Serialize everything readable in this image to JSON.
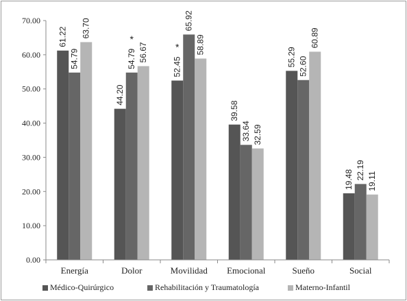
{
  "chart_data": {
    "type": "bar",
    "title": "",
    "xlabel": "",
    "ylabel": "",
    "ylim": [
      0,
      70
    ],
    "yticks": [
      "0.00",
      "10.00",
      "20.00",
      "30.00",
      "40.00",
      "50.00",
      "60.00",
      "70.00"
    ],
    "categories": [
      "Energía",
      "Dolor",
      "Movilidad",
      "Emocional",
      "Sueño",
      "Social"
    ],
    "series": [
      {
        "name": "Médico-Quirúrgico",
        "color": "#555555",
        "values": [
          61.22,
          44.2,
          52.45,
          39.58,
          55.29,
          19.48
        ],
        "labels": [
          "61.22",
          "44.20",
          "52.45",
          "39.58",
          "55.29",
          "19.48"
        ]
      },
      {
        "name": "Rehabilitación y Traumatología",
        "color": "#666666",
        "values": [
          54.79,
          54.79,
          65.92,
          33.64,
          52.6,
          22.19
        ],
        "labels": [
          "54.79",
          "54.79",
          "65.92",
          "33.64",
          "52.60",
          "22.19"
        ]
      },
      {
        "name": "Materno-Infantil",
        "color": "#b5b5b5",
        "values": [
          63.7,
          56.67,
          58.89,
          32.59,
          60.89,
          19.11
        ],
        "labels": [
          "63.70",
          "56.67",
          "58.89",
          "32.59",
          "60.89",
          "19.11"
        ]
      }
    ],
    "annotations": [
      {
        "text": "*",
        "category": "Dolor",
        "series": 1
      },
      {
        "text": "*",
        "category": "Movilidad",
        "series": 0
      }
    ],
    "grid": false,
    "legend": "bottom"
  }
}
